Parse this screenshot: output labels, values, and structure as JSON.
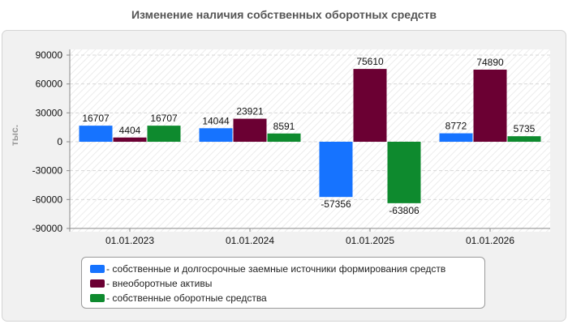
{
  "chart_data": {
    "type": "bar",
    "title": "Изменение наличия собственных оборотных средств",
    "ylabel": "тыс.",
    "categories": [
      "01.01.2023",
      "01.01.2024",
      "01.01.2025",
      "01.01.2026"
    ],
    "series": [
      {
        "name": "- собственные и долгосрочные заемные источники формирования средств",
        "color": "#1673ff",
        "values": [
          16707,
          14044,
          -57356,
          8772
        ]
      },
      {
        "name": "- внеоборотные активы",
        "color": "#6b0033",
        "values": [
          4404,
          23921,
          75610,
          74890
        ]
      },
      {
        "name": "- собственные оборотные средства",
        "color": "#0e8a2e",
        "values": [
          16707,
          8591,
          -63806,
          5735
        ]
      }
    ],
    "ylim": [
      -90000,
      90000
    ],
    "yticks": [
      90000,
      60000,
      30000,
      0,
      -30000,
      -60000,
      -90000
    ],
    "grid": true,
    "legend_position": "bottom"
  }
}
